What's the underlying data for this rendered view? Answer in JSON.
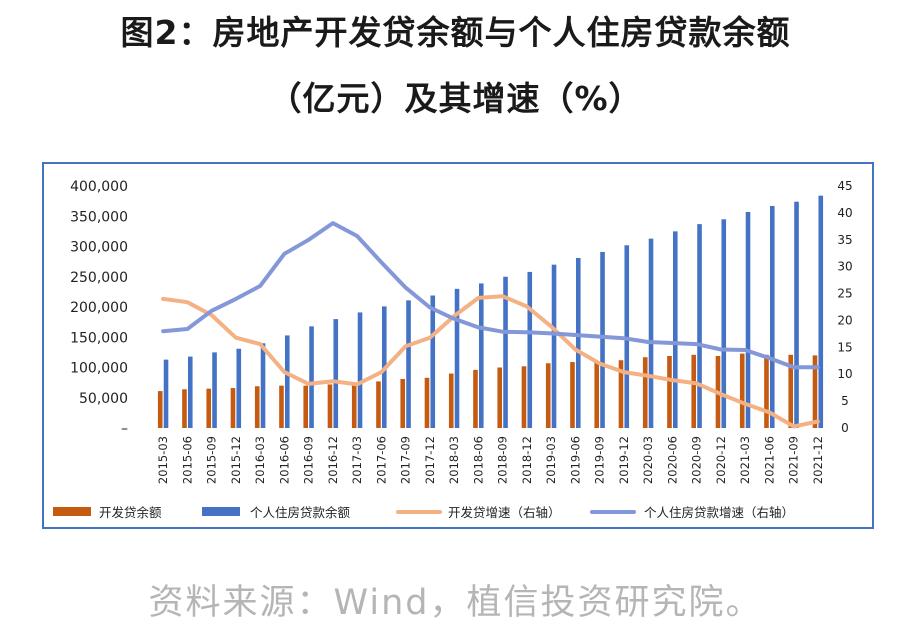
{
  "title_line1": "图2：房地产开发贷余额与个人住房贷款余额",
  "title_line2": "（亿元）及其增速（%）",
  "source": "资料来源：Wind，植信投资研究院。",
  "colors": {
    "dev_balance": "#c55a11",
    "mortgage_balance": "#4472c4",
    "dev_growth": "#f4b183",
    "mortgage_growth": "#8497d8",
    "frame": "#4472c4"
  },
  "chart_data": {
    "type": "bar",
    "categories": [
      "2015-03",
      "2015-06",
      "2015-09",
      "2015-12",
      "2016-03",
      "2016-06",
      "2016-09",
      "2016-12",
      "2017-03",
      "2017-06",
      "2017-09",
      "2017-12",
      "2018-03",
      "2018-06",
      "2018-09",
      "2018-12",
      "2019-03",
      "2019-06",
      "2019-09",
      "2019-12",
      "2020-03",
      "2020-06",
      "2020-09",
      "2020-12",
      "2021-03",
      "2021-06",
      "2021-09",
      "2021-12"
    ],
    "y_left_ticks": [
      "–",
      "50,000",
      "100,000",
      "150,000",
      "200,000",
      "250,000",
      "300,000",
      "350,000",
      "400,000"
    ],
    "y_left_range": [
      0,
      400000
    ],
    "y_right_ticks": [
      "0",
      "5",
      "10",
      "15",
      "20",
      "25",
      "30",
      "35",
      "40",
      "45"
    ],
    "y_right_range": [
      0,
      45
    ],
    "series": [
      {
        "name": "开发贷余额",
        "kind": "bar",
        "axis": "left",
        "values": [
          61000,
          64000,
          65000,
          66000,
          69000,
          70000,
          70000,
          72000,
          75000,
          77000,
          81000,
          83000,
          90000,
          96000,
          100000,
          102000,
          107000,
          109000,
          110000,
          112000,
          117000,
          119000,
          121000,
          119000,
          123000,
          121000,
          121000,
          120000
        ]
      },
      {
        "name": "个人住房贷款余额",
        "kind": "bar",
        "axis": "left",
        "values": [
          113000,
          118000,
          125000,
          131000,
          140000,
          153000,
          168000,
          180000,
          191000,
          201000,
          211000,
          219000,
          230000,
          239000,
          250000,
          258000,
          270000,
          281000,
          291000,
          302000,
          313000,
          325000,
          337000,
          345000,
          357000,
          367000,
          374000,
          384000
        ]
      },
      {
        "name": "开发贷增速（右轴）",
        "kind": "line",
        "axis": "right",
        "values": [
          24.0,
          23.4,
          21.0,
          16.8,
          15.6,
          10.4,
          8.2,
          8.7,
          8.1,
          10.4,
          15.2,
          16.8,
          20.8,
          24.2,
          24.5,
          22.6,
          18.9,
          14.6,
          12.0,
          10.4,
          9.7,
          8.9,
          8.3,
          6.3,
          4.5,
          2.9,
          0.3,
          1.2
        ]
      },
      {
        "name": "个人住房贷款增速（右轴）",
        "kind": "line",
        "axis": "right",
        "values": [
          18.0,
          18.4,
          21.8,
          24.0,
          26.4,
          32.4,
          35.0,
          38.1,
          35.7,
          30.8,
          26.1,
          22.4,
          20.3,
          18.7,
          17.9,
          17.8,
          17.6,
          17.3,
          17.0,
          16.7,
          16.0,
          15.8,
          15.6,
          14.6,
          14.5,
          13.0,
          11.3,
          11.3
        ]
      }
    ],
    "grid": false,
    "legend_position": "bottom"
  }
}
